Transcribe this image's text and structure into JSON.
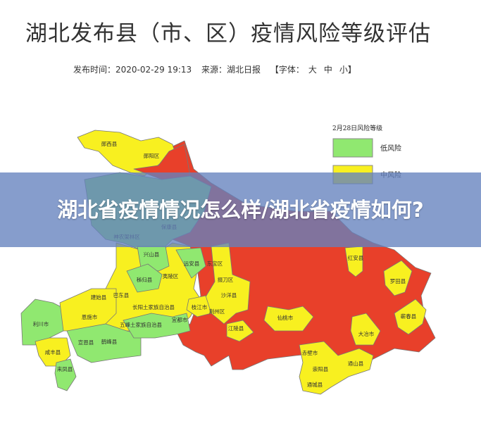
{
  "article": {
    "title": "湖北发布县（市、区）疫情风险等级评估",
    "published_label": "发布时间：2020-02-29 19:13",
    "source_label": "来源：湖北日报",
    "font_size_label": "【字体：",
    "font_large": "大",
    "font_medium": "中",
    "font_small": "小】"
  },
  "map": {
    "legend_title": "2月28日风险等级",
    "legend": [
      {
        "label": "低风险",
        "color": "#90e870"
      },
      {
        "label": "中风险",
        "color": "#f8f020"
      }
    ],
    "high_risk_color": "#e8402a",
    "labels": [
      "郧西县",
      "郧阳区",
      "保康县",
      "神农架林区",
      "兴山县",
      "远安县",
      "秭归县",
      "夷陵区",
      "建始县",
      "巴东县",
      "长阳土家族自治县",
      "利川市",
      "恩施市",
      "五峰土家族自治县",
      "宜都市",
      "枝江市",
      "宣恩县",
      "鹤峰县",
      "咸丰县",
      "来凤县",
      "东宝区",
      "掇刀区",
      "沙洋县",
      "荆州区",
      "江陵县",
      "仙桃市",
      "红安县",
      "罗田县",
      "蕲春县",
      "大冶市",
      "赤壁市",
      "崇阳县",
      "通山县",
      "通城县"
    ]
  },
  "banner": {
    "text": "湖北省疫情情况怎么样/湖北省疫情如何?"
  }
}
